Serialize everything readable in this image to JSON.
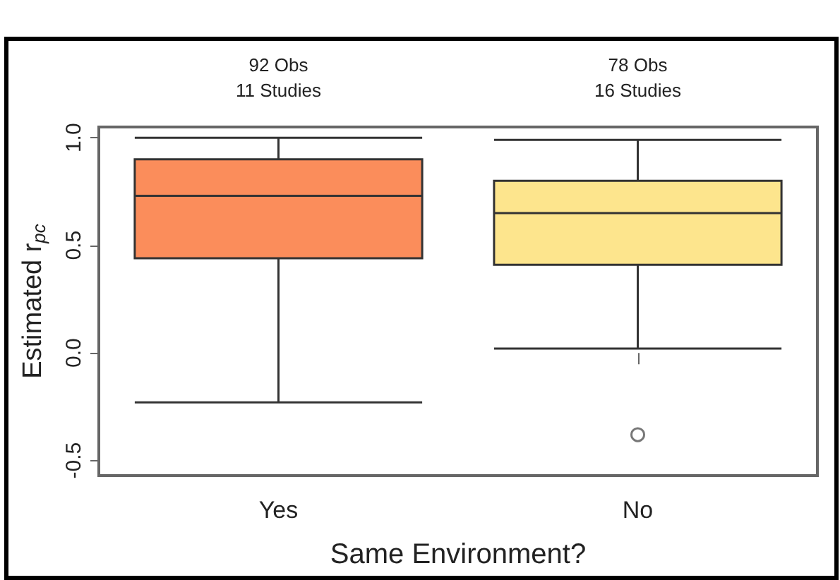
{
  "chart_data": {
    "type": "box",
    "xlabel": "Same Environment?",
    "ylabel": "Estimated r$_{pc}$",
    "categories": [
      "Yes",
      "No"
    ],
    "colors": [
      "#fb8d5b",
      "#fde58d"
    ],
    "boxes": [
      {
        "low": -0.23,
        "q1": 0.44,
        "median": 0.73,
        "q3": 0.9,
        "high": 1.0
      },
      {
        "low": 0.02,
        "q1": 0.41,
        "median": 0.65,
        "q3": 0.8,
        "high": 0.99,
        "outliers": [
          -0.38
        ]
      }
    ],
    "annotations": [
      "92 Obs\n11 Studies",
      "78 Obs\n16 Studies"
    ],
    "ylim": [
      -0.57,
      1.05
    ],
    "yticks": [
      -0.5,
      {
        "value": 0,
        "label": "0.0"
      },
      0.5,
      {
        "value": 1,
        "label": "1.0"
      }
    ]
  }
}
